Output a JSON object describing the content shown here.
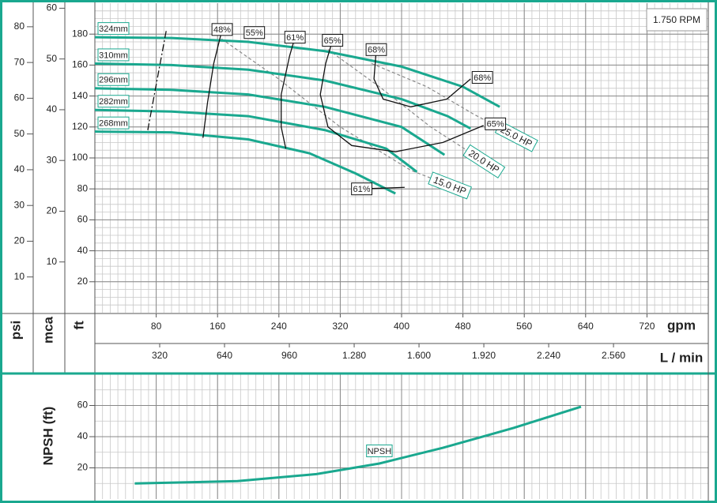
{
  "chart_data": {
    "type": "pump-curve",
    "rpm_label": "1.750 RPM",
    "x_label": "gpm",
    "x2_label": "L / min",
    "y_label": "ft",
    "psi_label": "psi",
    "mca_label": "mca",
    "xlim": [
      0,
      800
    ],
    "xticks": [
      80,
      160,
      240,
      320,
      400,
      480,
      560,
      640,
      720
    ],
    "x2lim": [
      0,
      3028
    ],
    "x2ticks": [
      320,
      640,
      960,
      {
        "value": 1280,
        "label": "1.280"
      },
      {
        "value": 1600,
        "label": "1.600"
      },
      {
        "value": 1920,
        "label": "1.920"
      },
      {
        "value": 2240,
        "label": "2.240"
      },
      {
        "value": 2560,
        "label": "2.560"
      }
    ],
    "ylim": [
      0,
      200
    ],
    "yticks": [
      20,
      40,
      60,
      80,
      100,
      120,
      140,
      160,
      180
    ],
    "psi_lim": [
      0,
      86.6
    ],
    "psi_ticks": [
      10,
      20,
      30,
      40,
      50,
      60,
      70,
      80
    ],
    "mca_lim": [
      0,
      61
    ],
    "mca_ticks": [
      10,
      20,
      30,
      40,
      50,
      60
    ],
    "grid": true,
    "series": [
      {
        "name": "324mm",
        "color": "#1aa88f",
        "x": [
          0,
          100,
          200,
          300,
          400,
          480,
          528
        ],
        "values": [
          178,
          177.5,
          175,
          169,
          159,
          146,
          133
        ]
      },
      {
        "name": "310mm",
        "color": "#1aa88f",
        "x": [
          0,
          100,
          200,
          300,
          400,
          460,
          490
        ],
        "values": [
          161,
          160,
          157,
          150,
          138,
          127,
          119
        ]
      },
      {
        "name": "296mm",
        "color": "#1aa88f",
        "x": [
          0,
          100,
          200,
          300,
          400,
          456
        ],
        "values": [
          145,
          144,
          141,
          133,
          120,
          102
        ]
      },
      {
        "name": "282mm",
        "color": "#1aa88f",
        "x": [
          0,
          100,
          200,
          300,
          380,
          420
        ],
        "values": [
          131,
          130,
          127,
          118,
          106,
          91
        ]
      },
      {
        "name": "268mm",
        "color": "#1aa88f",
        "x": [
          0,
          100,
          200,
          280,
          340,
          392
        ],
        "values": [
          117,
          116.5,
          112,
          103,
          90,
          77
        ]
      }
    ],
    "efficiency_lines": [
      {
        "x": [
          93,
          69
        ],
        "values": [
          182,
          118
        ],
        "dash": true
      },
      {
        "label": "48%",
        "label_at": "start",
        "x": [
          166,
          155,
          147,
          141
        ],
        "values": [
          183,
          161,
          136,
          113
        ]
      },
      {
        "label": "55%",
        "label_at": "start",
        "x": [
          208
        ],
        "values": [
          181
        ]
      },
      {
        "label": "61%",
        "label_at": "start",
        "x": [
          261,
          254,
          243,
          243,
          249
        ],
        "values": [
          178,
          166,
          141,
          120,
          106
        ]
      },
      {
        "label": "65%",
        "label_at": "both",
        "x": [
          310,
          301,
          294,
          304,
          335,
          392,
          454,
          507
        ],
        "values": [
          176,
          161,
          141,
          120,
          108,
          104,
          110,
          121
        ]
      },
      {
        "label": "68%",
        "label_at": "both",
        "x": [
          367,
          364,
          376,
          412,
          459,
          490
        ],
        "values": [
          170,
          151,
          138,
          133,
          138,
          151
        ]
      },
      {
        "label": "61%",
        "label_at": "start",
        "x": [
          348,
          404
        ],
        "values": [
          80,
          81
        ]
      }
    ],
    "power_lines": [
      {
        "label": "25.0 HP",
        "x": [
          361,
          433,
          495,
          526
        ],
        "values": [
          161,
          146,
          128,
          120
        ]
      },
      {
        "label": "20.0 HP",
        "x": [
          304,
          371,
          438,
          485
        ],
        "values": [
          170,
          146,
          120,
          105
        ]
      },
      {
        "label": "15.0 HP",
        "x": [
          165,
          237,
          320,
          412,
          438
        ],
        "values": [
          177,
          152,
          120,
          92,
          87
        ]
      }
    ],
    "npsh": {
      "y_label": "NPSH (ft)",
      "ylim": [
        0,
        80
      ],
      "yticks": [
        20,
        40,
        60
      ],
      "series": [
        {
          "name": "NPSH",
          "color": "#1aa88f",
          "x": [
            52,
            186,
            289,
            371,
            454,
            546,
            634
          ],
          "values": [
            10,
            11.5,
            16,
            22.8,
            32.9,
            45.6,
            59.2
          ]
        }
      ]
    }
  }
}
